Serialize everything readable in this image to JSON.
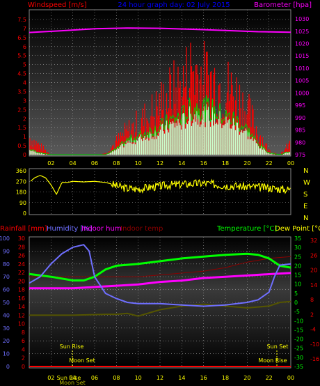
{
  "chart_data": [
    {
      "id": "wind",
      "type": "bar",
      "title": "24 hour graph day: 02 July 2015",
      "left_axis_label": "Windspeed [m/s]",
      "right_axis_label": "Barometer [hpa]",
      "x_ticks": [
        "02",
        "04",
        "06",
        "08",
        "10",
        "12",
        "14",
        "16",
        "18",
        "20",
        "22",
        "00"
      ],
      "left_ticks": [
        "0",
        "0.5",
        "1",
        "1.5",
        "2",
        "2.5",
        "3",
        "3.5",
        "4",
        "4.5",
        "5",
        "5.5",
        "6",
        "6.5",
        "7",
        "7.5"
      ],
      "left_range": [
        0,
        7.5
      ],
      "right_ticks": [
        "975",
        "980",
        "985",
        "990",
        "995",
        "1000",
        "1005",
        "1010",
        "1015",
        "1020",
        "1025",
        "1030"
      ],
      "right_range": [
        975,
        1032
      ],
      "grid": true,
      "colors": {
        "gust": "#ff0000",
        "average": "#00cc00",
        "fill": "#ccffcc",
        "barometer": "#ff00ff"
      },
      "barometer": {
        "x": [
          0,
          3,
          6,
          9,
          12,
          15,
          18,
          21,
          24
        ],
        "y": [
          1024.5,
          1025.2,
          1026.0,
          1026.3,
          1026.2,
          1025.8,
          1025.3,
          1024.8,
          1024.6
        ]
      },
      "wind_envelope": {
        "x": [
          0,
          1,
          2,
          3,
          4,
          5,
          6,
          7,
          8,
          9,
          10,
          11,
          12,
          13,
          14,
          15,
          16,
          17,
          18,
          19,
          20,
          21,
          22,
          23,
          24
        ],
        "gust": [
          1.2,
          0.6,
          0,
          0,
          0,
          0,
          0,
          0.1,
          0.9,
          1.6,
          2.1,
          2.7,
          3.4,
          4.2,
          4.6,
          6.0,
          5.2,
          5.0,
          4.6,
          4.1,
          3.0,
          1.6,
          0.3,
          0,
          0.8
        ],
        "average": [
          0.3,
          0.1,
          0,
          0,
          0,
          0,
          0,
          0,
          0.3,
          0.8,
          1.0,
          1.3,
          1.5,
          1.9,
          2.1,
          2.6,
          2.6,
          2.4,
          2.1,
          1.9,
          1.4,
          0.6,
          0.1,
          0,
          0.2
        ]
      }
    },
    {
      "id": "direction",
      "type": "line",
      "left_ticks": [
        "0",
        "90",
        "180",
        "270",
        "360"
      ],
      "left_range": [
        0,
        360
      ],
      "right_labels": [
        "N",
        "W",
        "S",
        "E",
        "N"
      ],
      "grid": true,
      "color": "#ffff00",
      "series": {
        "x": [
          0,
          0.5,
          1,
          1.5,
          2,
          2.5,
          3,
          3.5,
          4,
          5,
          6,
          7,
          7.5,
          8,
          9,
          10,
          11,
          12,
          13,
          14,
          15,
          16,
          17,
          18,
          19,
          20,
          21,
          22,
          23,
          24
        ],
        "y": [
          260,
          300,
          320,
          300,
          240,
          160,
          260,
          260,
          270,
          265,
          270,
          260,
          250,
          230,
          210,
          205,
          220,
          230,
          240,
          245,
          250,
          255,
          245,
          235,
          230,
          225,
          220,
          215,
          205,
          200
        ]
      }
    },
    {
      "id": "climate",
      "type": "line",
      "labels": {
        "rainfall": "Rainfall [mm]",
        "humidity": "Humidity [%]",
        "indoor_hum": "Indoor hum",
        "indoor_temp": "Indoor temp",
        "temperature": "Temperature [°C]",
        "dew_point": "Dew Point [°C]"
      },
      "x_ticks": [
        "02",
        "04",
        "06",
        "08",
        "10",
        "12",
        "14",
        "16",
        "18",
        "20",
        "22",
        "00"
      ],
      "humidity_ticks": [
        "0",
        "10",
        "20",
        "30",
        "40",
        "50",
        "60",
        "70",
        "80",
        "90",
        "100"
      ],
      "rain_ticks": [
        "0",
        "2",
        "4",
        "6",
        "8",
        "10",
        "12",
        "14",
        "16",
        "18",
        "20",
        "22",
        "24",
        "26",
        "28",
        "30"
      ],
      "temp_ticks": [
        "-35",
        "-30",
        "-25",
        "-20",
        "-15",
        "-10",
        "-5",
        "0",
        "5",
        "10",
        "15",
        "20",
        "25",
        "30",
        "35"
      ],
      "indoor_ticks": [
        "-16",
        "-10",
        "-4",
        "2",
        "8",
        "14",
        "20",
        "26",
        "32"
      ],
      "annotations": {
        "sunrise": "Sun Rise",
        "sunset": "Sun Set",
        "moonset": "Moon Set",
        "moonrise": "Moon Rise",
        "axis_sun": "Sun Rise",
        "axis_moon": "Moon Set"
      },
      "colors": {
        "rain": "#ff0000",
        "humidity": "#6f6fff",
        "indoor_hum": "#ff00ff",
        "indoor_temp": "#8b0000",
        "temperature": "#00ff00",
        "dew_point": "#555500"
      },
      "humidity": {
        "x": [
          0,
          1,
          2,
          3,
          4,
          5,
          5.5,
          6,
          7,
          8,
          9,
          10,
          12,
          14,
          16,
          18,
          20,
          21,
          22,
          22.5,
          23,
          24
        ],
        "y": [
          65,
          70,
          80,
          88,
          93,
          95,
          90,
          70,
          57,
          53,
          50,
          49,
          49,
          48,
          47,
          48,
          50,
          52,
          58,
          70,
          79,
          80
        ]
      },
      "temperature": {
        "x": [
          0,
          2,
          4,
          5,
          6,
          7,
          8,
          10,
          12,
          14,
          16,
          18,
          20,
          21,
          22,
          23,
          24
        ],
        "y": [
          15.5,
          14,
          12,
          12,
          14,
          18,
          20,
          21,
          22.5,
          24,
          25,
          26,
          26.5,
          26,
          24,
          20,
          19
        ]
      },
      "indoor_hum": {
        "x": [
          0,
          4,
          6,
          8,
          10,
          12,
          14,
          16,
          18,
          20,
          22,
          24
        ],
        "y": [
          61,
          61,
          62,
          63,
          64,
          66,
          67,
          69,
          70,
          71,
          72,
          73
        ]
      },
      "indoor_temp": {
        "x": [
          0,
          4,
          6,
          8,
          10,
          12,
          14,
          16,
          18,
          20,
          22,
          24
        ],
        "y": [
          14,
          14,
          14,
          14,
          14,
          15,
          16,
          17,
          19,
          22,
          24,
          25
        ]
      },
      "dew_point": {
        "x": [
          0,
          4,
          7,
          8,
          9,
          10,
          12,
          14,
          16,
          18,
          20,
          22,
          23,
          24
        ],
        "y": [
          -7,
          -7,
          -6.5,
          -6.5,
          -6,
          -7.5,
          -4,
          -2,
          -1,
          -2,
          -3,
          -2,
          0,
          0.5
        ]
      }
    }
  ]
}
